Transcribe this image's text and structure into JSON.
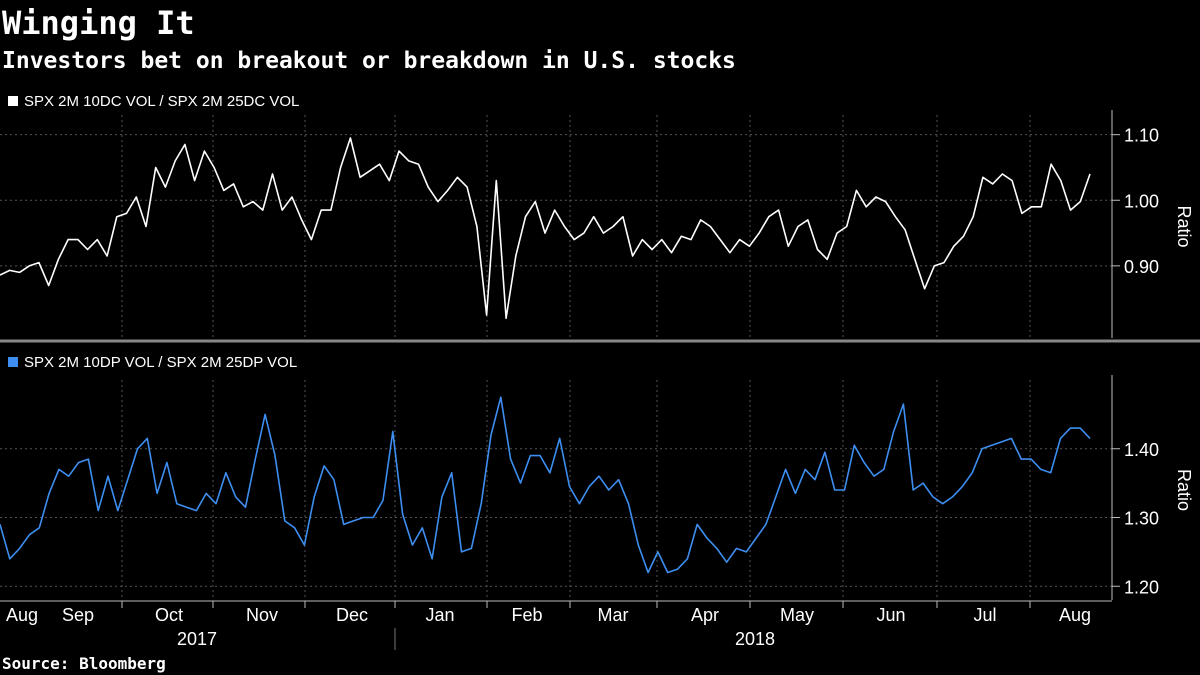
{
  "title": "Winging It",
  "subtitle": "Investors bet on breakout or breakdown in U.S. stocks",
  "source": "Source: Bloomberg",
  "x_axis": {
    "months": [
      "Aug",
      "Sep",
      "Oct",
      "Nov",
      "Dec",
      "Jan",
      "Feb",
      "Mar",
      "Apr",
      "May",
      "Jun",
      "Jul",
      "Aug"
    ],
    "years": [
      "2017",
      "2018"
    ]
  },
  "chart_data": [
    {
      "type": "line",
      "ylabel": "Ratio",
      "ylim": [
        0.79,
        1.13
      ],
      "yticks": [
        {
          "value": 0.9,
          "label": "0.90"
        },
        {
          "value": 1.0,
          "label": "1.00"
        },
        {
          "value": 1.1,
          "label": "1.10"
        }
      ],
      "grid": true,
      "series": [
        {
          "name": "SPX 2M 10DC VOL / SPX 2M 25DC VOL",
          "color": "#ffffff",
          "values": [
            0.886,
            0.893,
            0.89,
            0.9,
            0.905,
            0.87,
            0.91,
            0.94,
            0.94,
            0.925,
            0.94,
            0.915,
            0.975,
            0.98,
            1.005,
            0.96,
            1.05,
            1.02,
            1.06,
            1.085,
            1.03,
            1.075,
            1.05,
            1.015,
            1.025,
            0.99,
            0.998,
            0.985,
            1.04,
            0.985,
            1.005,
            0.97,
            0.94,
            0.985,
            0.985,
            1.05,
            1.095,
            1.035,
            1.045,
            1.055,
            1.03,
            1.075,
            1.06,
            1.055,
            1.02,
            0.998,
            1.015,
            1.035,
            1.02,
            0.96,
            0.825,
            1.03,
            0.82,
            0.915,
            0.975,
            0.998,
            0.95,
            0.985,
            0.96,
            0.94,
            0.95,
            0.975,
            0.95,
            0.96,
            0.975,
            0.915,
            0.94,
            0.925,
            0.94,
            0.92,
            0.945,
            0.94,
            0.97,
            0.96,
            0.94,
            0.92,
            0.94,
            0.93,
            0.95,
            0.975,
            0.985,
            0.93,
            0.96,
            0.97,
            0.925,
            0.91,
            0.95,
            0.96,
            1.015,
            0.99,
            1.005,
            0.998,
            0.975,
            0.955,
            0.91,
            0.865,
            0.9,
            0.905,
            0.93,
            0.945,
            0.975,
            1.035,
            1.025,
            1.04,
            1.03,
            0.98,
            0.99,
            0.99,
            1.055,
            1.03,
            0.985,
            0.998,
            1.04
          ]
        }
      ]
    },
    {
      "type": "line",
      "ylabel": "Ratio",
      "ylim": [
        1.18,
        1.5
      ],
      "yticks": [
        {
          "value": 1.2,
          "label": "1.20"
        },
        {
          "value": 1.3,
          "label": "1.30"
        },
        {
          "value": 1.4,
          "label": "1.40"
        }
      ],
      "grid": true,
      "series": [
        {
          "name": "SPX 2M 10DP VOL / SPX 2M 25DP VOL",
          "color": "#3d8ef0",
          "values": [
            1.29,
            1.24,
            1.255,
            1.275,
            1.285,
            1.335,
            1.37,
            1.36,
            1.38,
            1.385,
            1.31,
            1.36,
            1.31,
            1.355,
            1.4,
            1.415,
            1.335,
            1.38,
            1.32,
            1.315,
            1.31,
            1.335,
            1.32,
            1.365,
            1.33,
            1.315,
            1.385,
            1.45,
            1.39,
            1.295,
            1.285,
            1.26,
            1.33,
            1.375,
            1.355,
            1.29,
            1.295,
            1.3,
            1.3,
            1.325,
            1.425,
            1.305,
            1.26,
            1.285,
            1.24,
            1.33,
            1.365,
            1.25,
            1.255,
            1.32,
            1.42,
            1.475,
            1.385,
            1.35,
            1.39,
            1.39,
            1.365,
            1.415,
            1.345,
            1.32,
            1.345,
            1.36,
            1.34,
            1.355,
            1.32,
            1.26,
            1.22,
            1.25,
            1.22,
            1.225,
            1.24,
            1.29,
            1.27,
            1.255,
            1.235,
            1.255,
            1.25,
            1.27,
            1.29,
            1.33,
            1.37,
            1.335,
            1.37,
            1.355,
            1.395,
            1.34,
            1.34,
            1.405,
            1.38,
            1.36,
            1.37,
            1.425,
            1.465,
            1.34,
            1.35,
            1.33,
            1.32,
            1.33,
            1.345,
            1.365,
            1.4,
            1.405,
            1.41,
            1.415,
            1.385,
            1.385,
            1.37,
            1.365,
            1.415,
            1.43,
            1.43,
            1.415
          ]
        }
      ]
    }
  ]
}
